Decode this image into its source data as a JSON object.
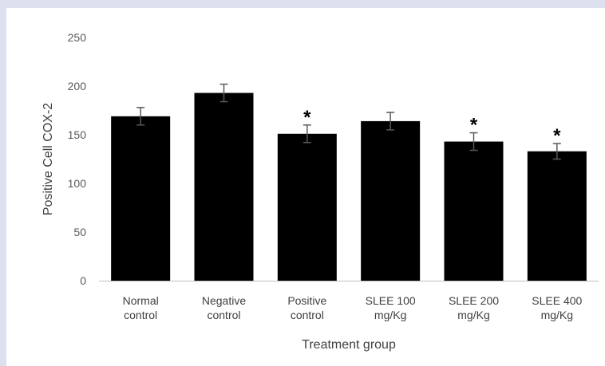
{
  "chart_data": {
    "type": "bar",
    "categories": [
      [
        "Normal",
        "control"
      ],
      [
        "Negative",
        "control"
      ],
      [
        "Positive",
        "control"
      ],
      [
        "SLEE 100",
        "mg/Kg"
      ],
      [
        "SLEE 200",
        "mg/Kg"
      ],
      [
        "SLEE 400",
        "mg/Kg"
      ]
    ],
    "values": [
      169,
      193,
      151,
      164,
      143,
      133
    ],
    "errors": [
      9,
      9,
      9,
      9,
      9,
      8
    ],
    "significance": [
      "",
      "",
      "*",
      "",
      "*",
      "*"
    ],
    "xlabel": "Treatment group",
    "ylabel": "Positive Cell COX-2",
    "ylim": [
      0,
      250
    ],
    "yticks": [
      0,
      50,
      100,
      150,
      200,
      250
    ],
    "grid": false,
    "bar_color": "#000000",
    "error_bar_color": "#595959",
    "axis_color": "#bfbfbf"
  }
}
